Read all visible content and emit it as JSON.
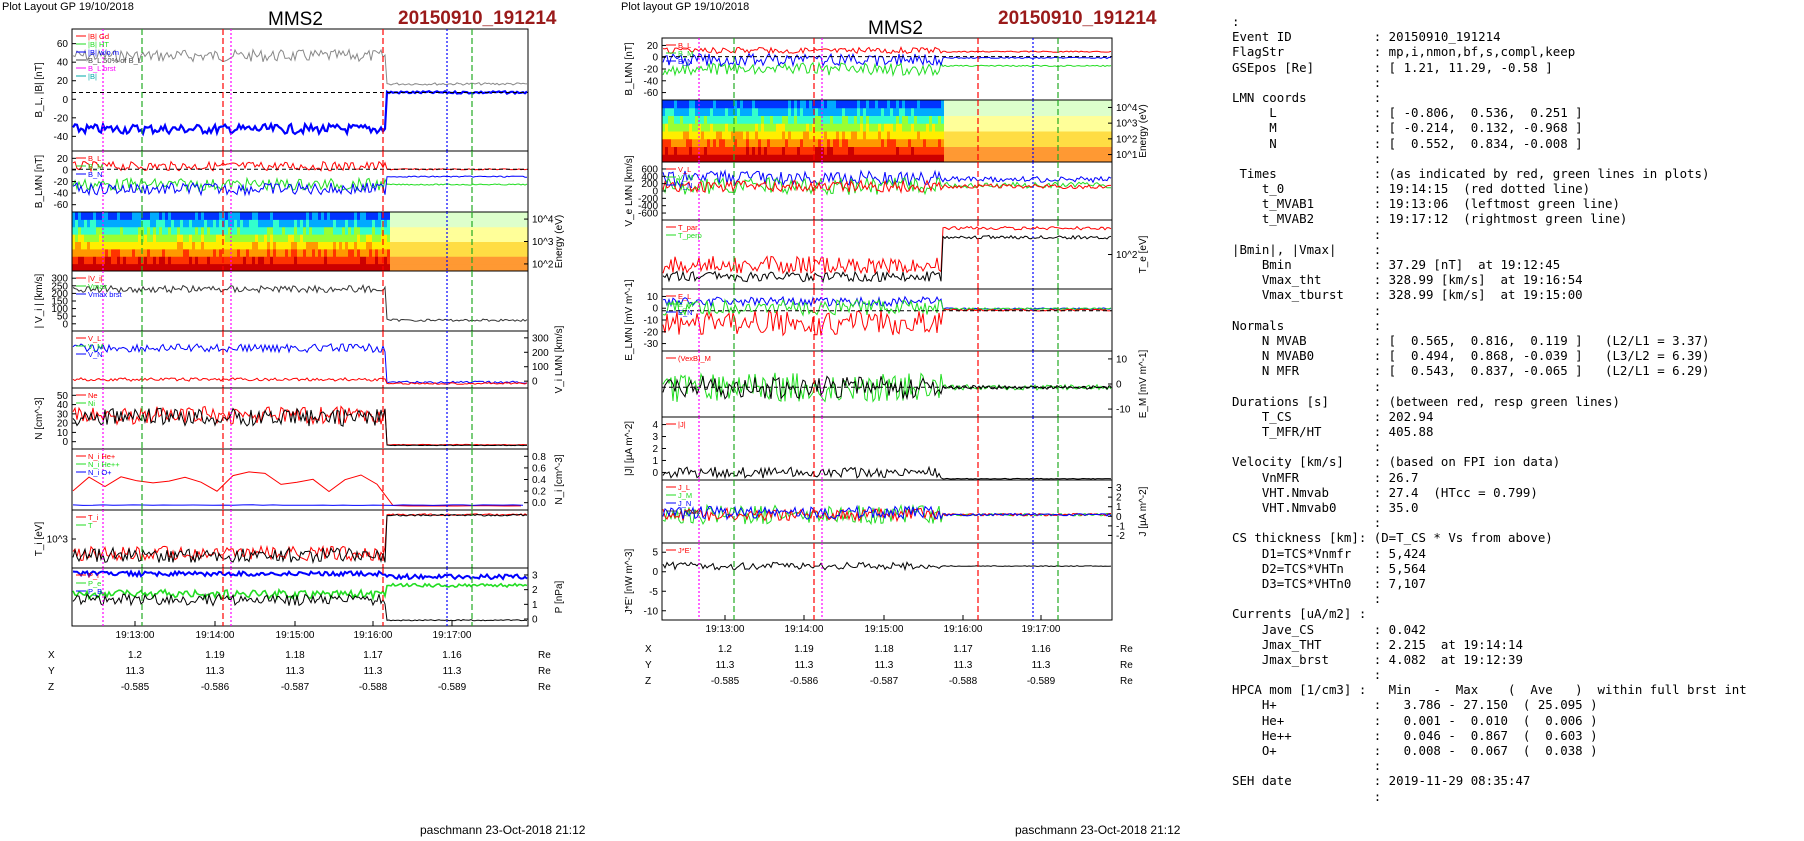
{
  "left": {
    "header": {
      "layout": "Plot Layout GP 19/10/2018",
      "sc": "MMS2",
      "event": "20150910_191214"
    },
    "footer": "paschmann 23-Oct-2018 21:12",
    "panels": [
      {
        "ylabel": "B_L, |B| [nT]",
        "ticks": [
          "60",
          "40",
          "20",
          "0",
          "-20",
          "-40"
        ],
        "legend": [
          "|B| Gd",
          "|B| HT",
          "|B| w/o m",
          "B_L 50% of B_L",
          "B_L brst",
          "|B|"
        ]
      },
      {
        "ylabel": "B_LMN [nT]",
        "ticks": [
          "20",
          "0",
          "-20",
          "-40",
          "-60"
        ],
        "legend": [
          "B_L",
          "B_M",
          "B_N"
        ]
      },
      {
        "ylabel": "Energy (eV)",
        "ticks": [
          "10^4",
          "10^3",
          "10^2"
        ]
      },
      {
        "ylabel": "| V_i | [km/s]",
        "ticks": [
          "300",
          "250",
          "200",
          "150",
          "100",
          "50",
          "0"
        ],
        "legend": [
          "|V_i|",
          "Vmax",
          "Vmax brst"
        ]
      },
      {
        "ylabel": "V_i LMN [km/s]",
        "ticks": [
          "300",
          "200",
          "100",
          "0"
        ],
        "legend": [
          "V_L",
          "V_M",
          "V_N"
        ]
      },
      {
        "ylabel": "N [cm^-3]",
        "ticks": [
          "50",
          "40",
          "30",
          "20",
          "10",
          "0"
        ],
        "legend": [
          "Ne",
          "Ni"
        ]
      },
      {
        "ylabel": "N_i [cm^-3]",
        "ticks": [
          "0.8",
          "0.6",
          "0.4",
          "0.2",
          "0.0"
        ],
        "legend": [
          "N_i He+",
          "N_i He++",
          "N_i O+"
        ]
      },
      {
        "ylabel": "T_i [eV]",
        "ticks": [
          "10^3"
        ],
        "legend": [
          "T_i",
          "T"
        ]
      },
      {
        "ylabel": "P [nPa]",
        "ticks": [
          "3",
          "2",
          "1",
          "0"
        ],
        "legend": [
          "P_i",
          "P_e",
          "P_B"
        ]
      }
    ],
    "times": [
      "19:13:00",
      "19:14:00",
      "19:15:00",
      "19:16:00",
      "19:17:00"
    ],
    "coords": {
      "X": [
        "1.2",
        "1.19",
        "1.18",
        "1.17",
        "1.16"
      ],
      "Y": [
        "11.3",
        "11.3",
        "11.3",
        "11.3",
        "11.3"
      ],
      "Z": [
        "-0.585",
        "-0.586",
        "-0.587",
        "-0.588",
        "-0.589"
      ],
      "unit": "Re"
    }
  },
  "middle": {
    "header": {
      "layout": "Plot layout GP 19/10/2018",
      "sc": "MMS2",
      "event": "20150910_191214"
    },
    "footer": "paschmann 23-Oct-2018 21:12",
    "panels": [
      {
        "ylabel": "B_LMN [nT]",
        "ticks": [
          "20",
          "0",
          "-20",
          "-40",
          "-60"
        ],
        "legend": [
          "B_L",
          "B_M",
          "B_N"
        ]
      },
      {
        "ylabel": "Energy (eV)",
        "ticks": [
          "10^4",
          "10^3",
          "10^2",
          "10^1"
        ]
      },
      {
        "ylabel": "V_e LMN [km/s]",
        "ticks": [
          "600",
          "400",
          "200",
          "0",
          "-200",
          "-400",
          "-600"
        ],
        "legend": [
          "V_L",
          "V_M",
          "V_N"
        ]
      },
      {
        "ylabel": "T_e [eV]",
        "ticks": [
          "10^2"
        ],
        "legend": [
          "T_par",
          "T_perp"
        ]
      },
      {
        "ylabel": "E_LMN [mV m^-1]",
        "ticks": [
          "10",
          "0",
          "-10",
          "-20",
          "-30"
        ],
        "legend": [
          "E_L",
          "E_M",
          "E_N"
        ]
      },
      {
        "ylabel": "E_M [mV m^-1]",
        "ticks": [
          "10",
          "0",
          "-10"
        ],
        "legend": [
          "(VexB)_M"
        ]
      },
      {
        "ylabel": "|J| [µA m^-2]",
        "ticks": [
          "4",
          "3",
          "2",
          "1",
          "0"
        ],
        "legend": [
          "|J|"
        ]
      },
      {
        "ylabel": "J [µA m^-2]",
        "ticks": [
          "3",
          "2",
          "1",
          "0",
          "-1",
          "-2"
        ],
        "legend": [
          "J_L",
          "J_M",
          "J_N",
          "J_max"
        ]
      },
      {
        "ylabel": "J*E' [nW m^-3]",
        "ticks": [
          "5",
          "0",
          "-5",
          "-10"
        ],
        "legend": [
          "J*E'"
        ]
      }
    ],
    "times": [
      "19:13:00",
      "19:14:00",
      "19:15:00",
      "19:16:00",
      "19:17:00"
    ],
    "coords": {
      "X": [
        "1.2",
        "1.19",
        "1.18",
        "1.17",
        "1.16"
      ],
      "Y": [
        "11.3",
        "11.3",
        "11.3",
        "11.3",
        "11.3"
      ],
      "Z": [
        "-0.585",
        "-0.586",
        "-0.587",
        "-0.588",
        "-0.589"
      ],
      "unit": "Re"
    }
  },
  "info_lines": [
    ":",
    "Event ID           : 20150910_191214",
    "FlagStr            : mp,i,nmon,bf,s,compl,keep",
    "GSEpos [Re]        : [ 1.21, 11.29, -0.58 ]",
    "                   :",
    "LMN coords         :",
    "     L             : [ -0.806,  0.536,  0.251 ]",
    "     M             : [ -0.214,  0.132, -0.968 ]",
    "     N             : [  0.552,  0.834, -0.008 ]",
    "                   :",
    " Times             : (as indicated by red, green lines in plots)",
    "    t_0            : 19:14:15  (red dotted line)",
    "    t_MVAB1        : 19:13:06  (leftmost green line)",
    "    t_MVAB2        : 19:17:12  (rightmost green line)",
    "                   :",
    "|Bmin|, |Vmax|     :",
    "    Bmin           : 37.29 [nT]  at 19:12:45",
    "    Vmax_tht       : 328.99 [km/s]  at 19:16:54",
    "    Vmax_tburst    : 328.99 [km/s]  at 19:15:00",
    "                   :",
    "Normals            :",
    "    N MVAB         : [  0.565,  0.816,  0.119 ]   (L2/L1 = 3.37)",
    "    N MVAB0        : [  0.494,  0.868, -0.039 ]   (L3/L2 = 6.39)",
    "    N MFR          : [  0.543,  0.837, -0.065 ]   (L2/L1 = 6.29)",
    "                   :",
    "Durations [s]      : (between red, resp green lines)",
    "    T_CS           : 202.94",
    "    T_MFR/HT       : 405.88",
    "                   :",
    "Velocity [km/s]    : (based on FPI ion data)",
    "    VnMFR          : 26.7",
    "    VHT.Nmvab      : 27.4  (HTcc = 0.799)",
    "    VHT.Nmvab0     : 35.0",
    "                   :",
    "CS thickness [km]: (D=T_CS * Vs from above)",
    "    D1=TCS*Vnmfr   : 5,424",
    "    D2=TCS*VHTn    : 5,564",
    "    D3=TCS*VHTn0   : 7,107",
    "                   :",
    "Currents [uA/m2] :",
    "    Jave_CS        : 0.042",
    "    Jmax_THT       : 2.215  at 19:14:14",
    "    Jmax_brst      : 4.082  at 19:12:39",
    "                   :",
    "HPCA mom [1/cm3] :   Min   -  Max    (  Ave   )  within full brst int",
    "    H+             :   3.786 - 27.150  ( 25.095 )",
    "    He+            :   0.001 -  0.010  (  0.006 )",
    "    He++           :   0.046 -  0.867  (  0.603 )",
    "    O+             :   0.008 -  0.067  (  0.038 )",
    "                   :",
    "SEH date           : 2019-11-29 08:35:47",
    "                   :"
  ],
  "colors": {
    "event": "#9a1a1a",
    "red": "#ff0000",
    "green": "#22dd22",
    "blue": "#0000ff",
    "magenta": "#ff00ff"
  },
  "chart_data": [
    {
      "type": "line",
      "title": "MMS2 20150910_191214",
      "subplots": 9,
      "x": [
        "19:13:00",
        "19:14:00",
        "19:15:00",
        "19:16:00",
        "19:17:00"
      ],
      "ylabels": [
        "B_L, |B| [nT]",
        "B_LMN [nT]",
        "Energy (eV)",
        "| V_i | [km/s]",
        "V_i LMN [km/s]",
        "N [cm^-3]",
        "N_i [cm^-3]",
        "T_i [eV]",
        "P [nPa]"
      ]
    },
    {
      "type": "line",
      "title": "MMS2 20150910_191214",
      "subplots": 9,
      "x": [
        "19:13:00",
        "19:14:00",
        "19:15:00",
        "19:16:00",
        "19:17:00"
      ],
      "ylabels": [
        "B_LMN [nT]",
        "Energy (eV)",
        "V_e LMN [km/s]",
        "T_e [eV]",
        "E_LMN [mV m^-1]",
        "E_M [mV m^-1]",
        "|J| [µA m^-2]",
        "J [µA m^-2]",
        "J*E' [nW m^-3]"
      ]
    }
  ]
}
